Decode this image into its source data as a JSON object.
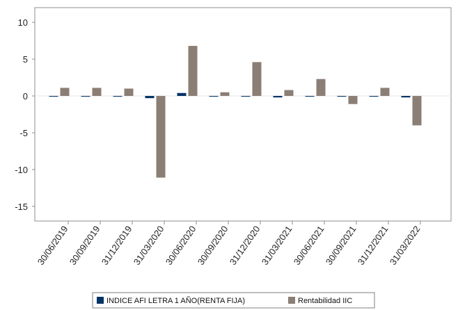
{
  "chart_data": {
    "type": "bar",
    "categories": [
      "30/06/2019",
      "30/09/2019",
      "31/12/2019",
      "31/03/2020",
      "30/06/2020",
      "30/09/2020",
      "31/12/2020",
      "31/03/2021",
      "30/06/2021",
      "30/09/2021",
      "31/12/2021",
      "31/03/2022"
    ],
    "series": [
      {
        "name": "INDICE AFI LETRA 1 AÑO(RENTA FIJA)",
        "color": "#003366",
        "values": [
          -0.1,
          -0.1,
          -0.1,
          -0.3,
          0.4,
          -0.1,
          -0.1,
          -0.2,
          -0.1,
          -0.1,
          -0.1,
          -0.2
        ]
      },
      {
        "name": "Rentabilidad IIC",
        "color": "#8b7e74",
        "values": [
          1.1,
          1.1,
          1.0,
          -11.1,
          6.8,
          0.5,
          4.6,
          0.8,
          2.3,
          -1.1,
          1.1,
          -4.0
        ]
      }
    ],
    "yticks": [
      "10",
      "5",
      "0",
      "-5",
      "-10",
      "-15"
    ],
    "ylim": [
      -17,
      12
    ],
    "xlabel": "",
    "ylabel": "",
    "grid": false,
    "legend_position": "bottom"
  }
}
